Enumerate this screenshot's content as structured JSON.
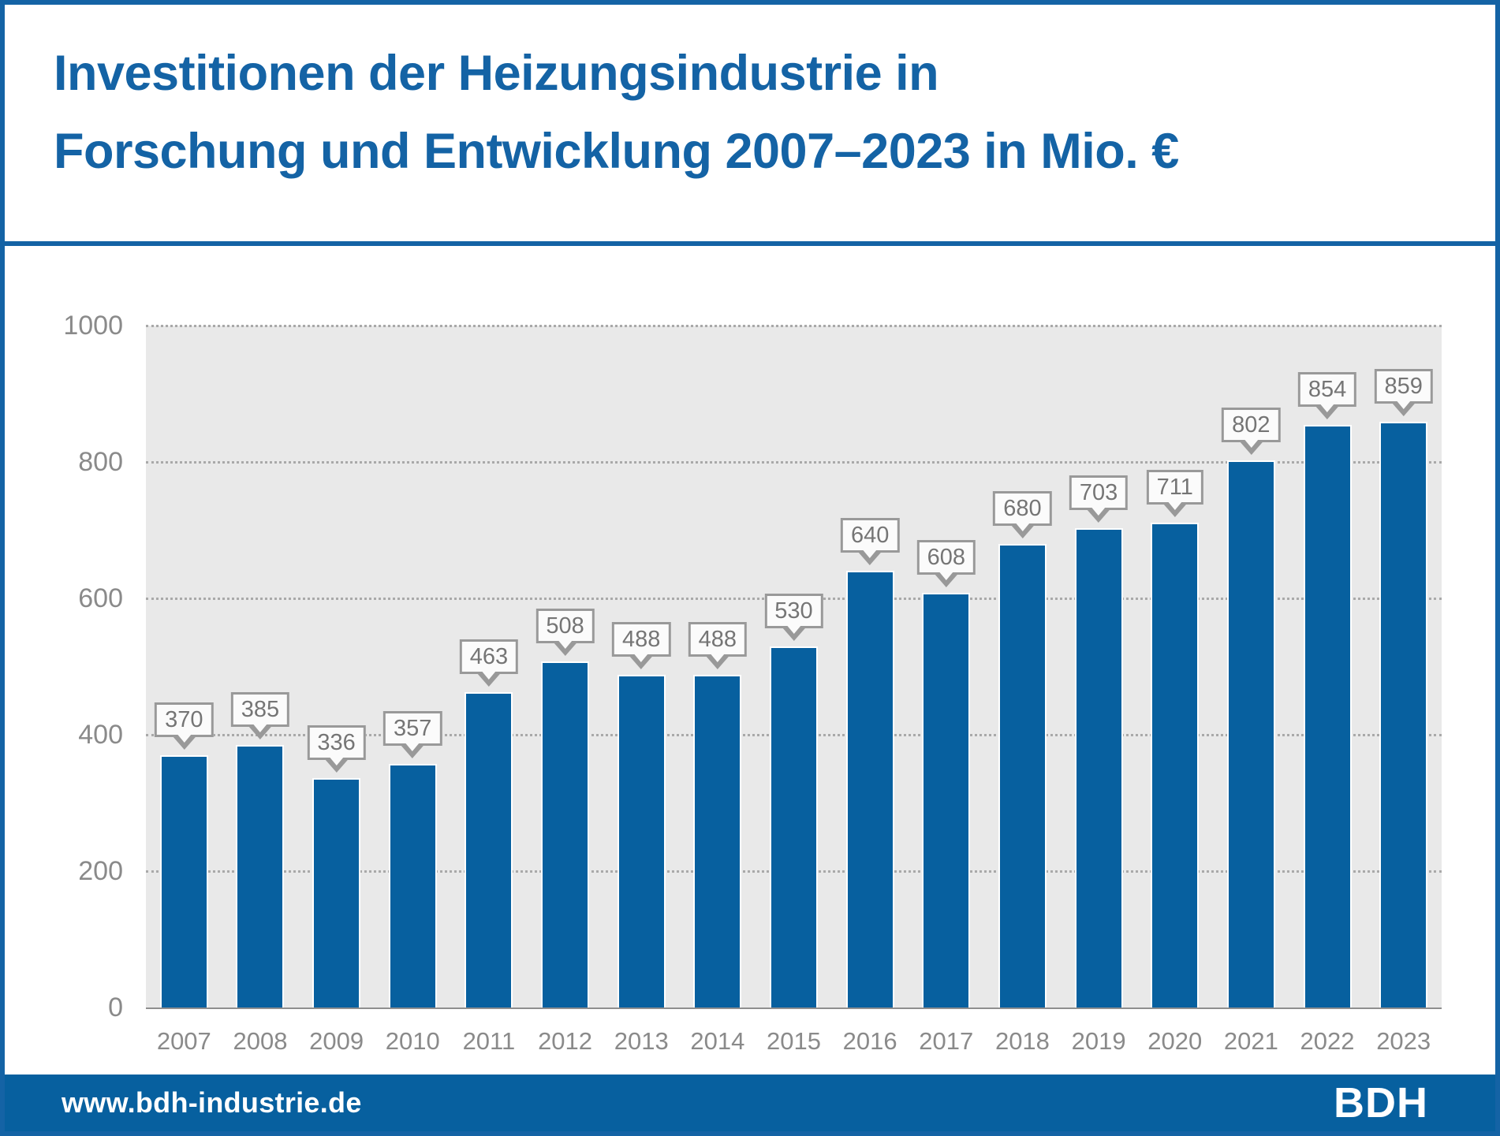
{
  "title": {
    "line1": "Investitionen der Heizungsindustrie in",
    "line2": "Forschung und Entwicklung 2007–2023 in Mio. €"
  },
  "footer": {
    "website": "www.bdh-industrie.de",
    "logo": "BDH"
  },
  "colors": {
    "brand_blue": "#1463a5",
    "bar_blue": "#07609f",
    "plot_bg": "#e9e9e9",
    "grid_gray": "#a9a9a9",
    "axis_gray": "#8f8f8f",
    "label_gray": "#8a8a8a",
    "callout_border": "#999999",
    "callout_bg": "#fbfbfb",
    "callout_text": "#757575"
  },
  "chart_data": {
    "type": "bar",
    "title": "Investitionen der Heizungsindustrie in Forschung und Entwicklung 2007–2023 in Mio. €",
    "categories": [
      "2007",
      "2008",
      "2009",
      "2010",
      "2011",
      "2012",
      "2013",
      "2014",
      "2015",
      "2016",
      "2017",
      "2018",
      "2019",
      "2020",
      "2021",
      "2022",
      "2023"
    ],
    "values": [
      370,
      385,
      336,
      357,
      463,
      508,
      488,
      488,
      530,
      640,
      608,
      680,
      703,
      711,
      802,
      854,
      859
    ],
    "xlabel": "",
    "ylabel": "",
    "unit": "Mio. €",
    "ylim": [
      0,
      1000
    ],
    "yticks": [
      0,
      200,
      400,
      600,
      800,
      1000
    ],
    "grid": "horizontal-dotted",
    "legend": "none",
    "value_labels": "callout-above-bar"
  }
}
